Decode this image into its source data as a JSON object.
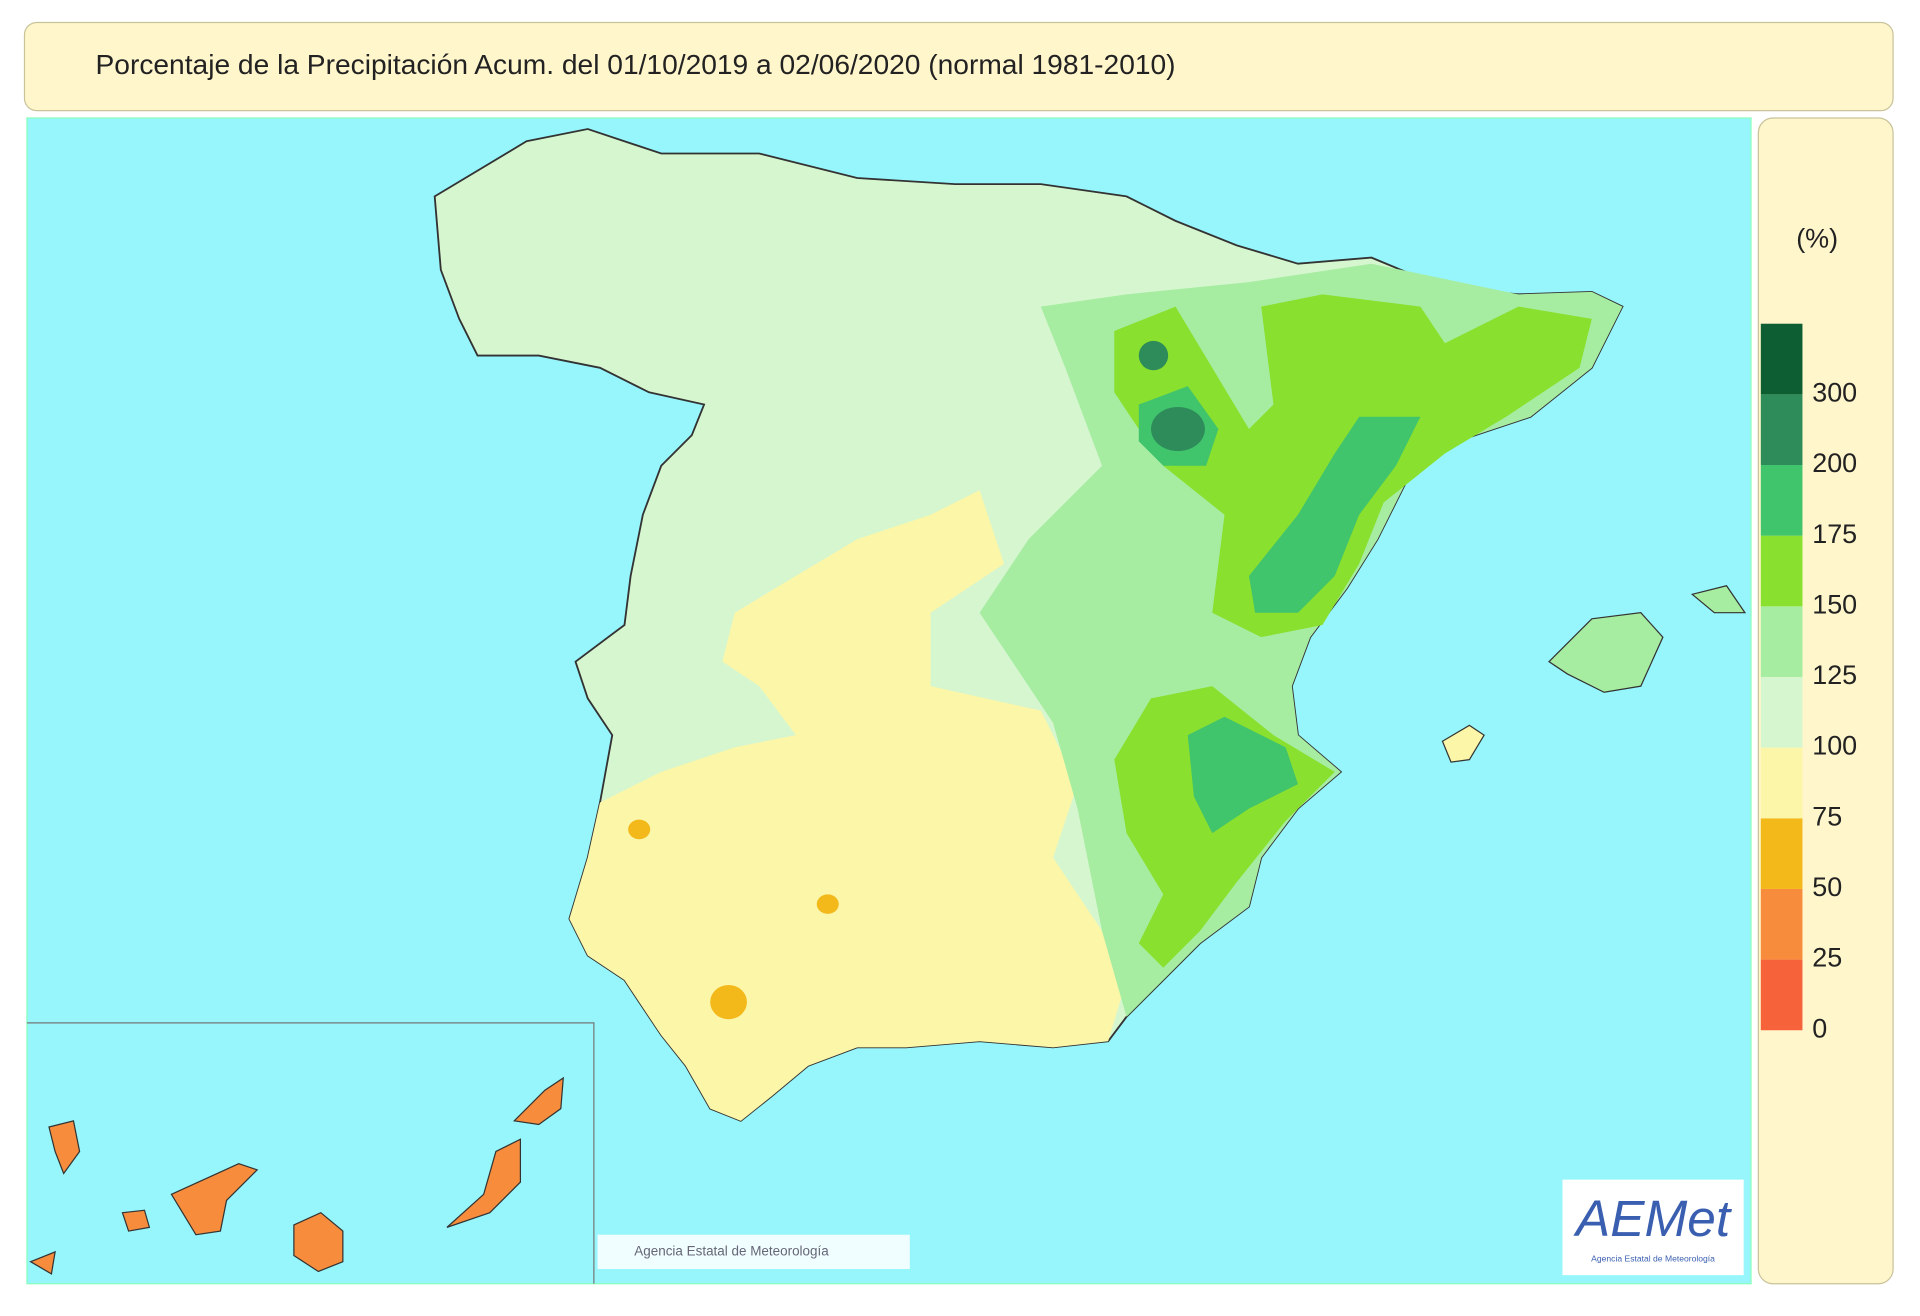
{
  "header": {
    "title": "Porcentaje de la Precipitación Acum. del 01/10/2019 a  02/06/2020  (normal 1981-2010)"
  },
  "legend": {
    "unit": "(%)",
    "items": [
      {
        "value": 0,
        "color": "#f6623a"
      },
      {
        "value": 25,
        "color": "#f78d3c"
      },
      {
        "value": 50,
        "color": "#f3b81a"
      },
      {
        "value": 75,
        "color": "#fcf6a8"
      },
      {
        "value": 100,
        "color": "#d6f6cf"
      },
      {
        "value": 125,
        "color": "#a6eda2"
      },
      {
        "value": 150,
        "color": "#8ae02e"
      },
      {
        "value": 175,
        "color": "#40c46c"
      },
      {
        "value": 200,
        "color": "#2e8c5a"
      },
      {
        "value": 300,
        "color": "#0e5e33"
      }
    ]
  },
  "footer": {
    "watermark": "Agencia Estatal de Meteorología",
    "logo": "AEMet"
  }
}
